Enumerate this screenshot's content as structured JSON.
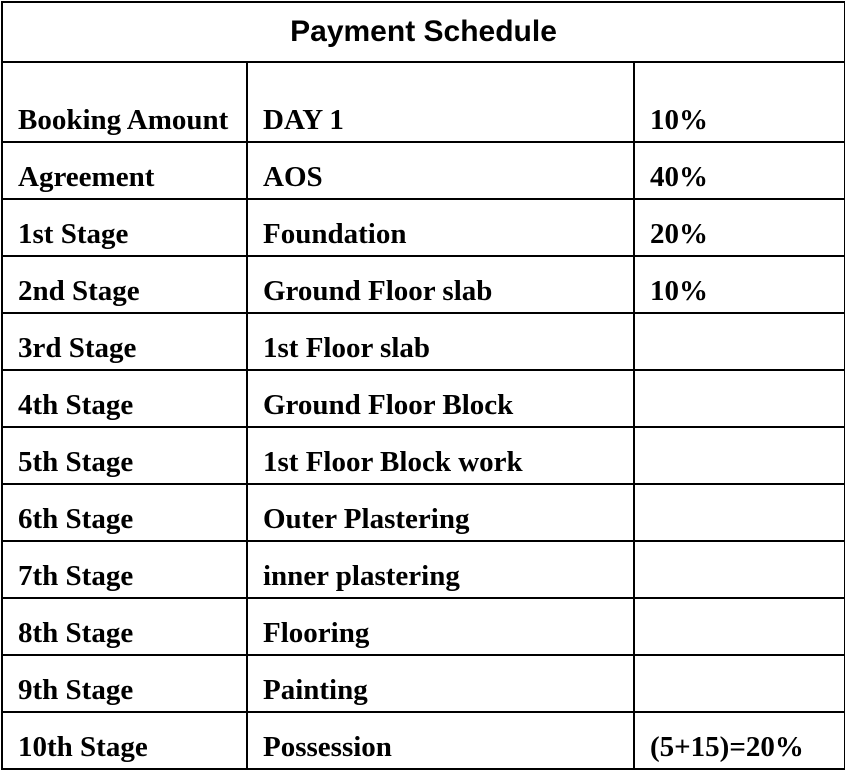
{
  "title": "Payment Schedule",
  "rows": [
    {
      "stage": "Booking Amount",
      "milestone": "DAY 1",
      "percent": "10%"
    },
    {
      "stage": "Agreement",
      "milestone": "AOS",
      "percent": "40%"
    },
    {
      "stage": "1st Stage",
      "milestone": "Foundation",
      "percent": "20%"
    },
    {
      "stage": "2nd Stage",
      "milestone": "Ground Floor slab",
      "percent": "10%"
    },
    {
      "stage": "3rd Stage",
      "milestone": "1st Floor slab",
      "percent": ""
    },
    {
      "stage": "4th Stage",
      "milestone": "Ground Floor Block",
      "percent": ""
    },
    {
      "stage": "5th Stage",
      "milestone": "1st Floor Block work",
      "percent": ""
    },
    {
      "stage": "6th Stage",
      "milestone": "Outer Plastering",
      "percent": ""
    },
    {
      "stage": "7th Stage",
      "milestone": "inner plastering",
      "percent": ""
    },
    {
      "stage": "8th Stage",
      "milestone": "Flooring",
      "percent": ""
    },
    {
      "stage": "9th Stage",
      "milestone": "Painting",
      "percent": ""
    },
    {
      "stage": "10th Stage",
      "milestone": "Possession",
      "percent": "(5+15)=20%"
    }
  ]
}
